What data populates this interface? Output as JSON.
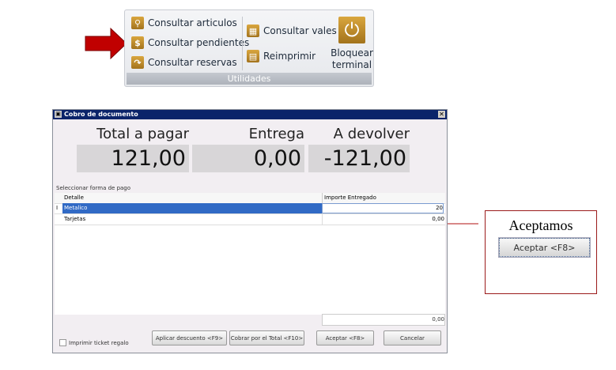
{
  "ribbon": {
    "items": [
      {
        "label": "Consultar articulos",
        "icon": "search-icon"
      },
      {
        "label": "Consultar pendientes",
        "icon": "dollar-icon"
      },
      {
        "label": "Consultar reservas",
        "icon": "phone-icon"
      },
      {
        "label": "Consultar vales",
        "icon": "grid-icon"
      },
      {
        "label": "Reimprimir",
        "icon": "printer-icon"
      }
    ],
    "lock_line1": "Bloquear",
    "lock_line2": "terminal",
    "group_label": "Utilidades"
  },
  "dialog": {
    "title": "Cobro de documento",
    "total_label": "Total a pagar",
    "total_value": "121,00",
    "entrega_label": "Entrega",
    "entrega_value": "0,00",
    "devolver_label": "A devolver",
    "devolver_value": "-121,00",
    "section_label": "Seleccionar forma de pago",
    "columns": [
      "Detalle",
      "Importe Entregado"
    ],
    "rows": [
      {
        "detalle": "Metalico",
        "importe": "20"
      },
      {
        "detalle": "Tarjetas",
        "importe": "0,00"
      }
    ],
    "footer_total": "0,00",
    "checkbox_label": "Imprimir ticket regalo",
    "buttons": {
      "discount": "Aplicar descuento <F9>",
      "total": "Cobrar por el Total <F10>",
      "accept": "Aceptar <F8>",
      "cancel": "Cancelar"
    }
  },
  "callout": {
    "title": "Aceptamos",
    "button": "Aceptar <F8>"
  },
  "colors": {
    "arrow": "#c00000",
    "selection": "#316ac5",
    "titlebar": "#0a246a",
    "callout_border": "#9b1b1b"
  }
}
